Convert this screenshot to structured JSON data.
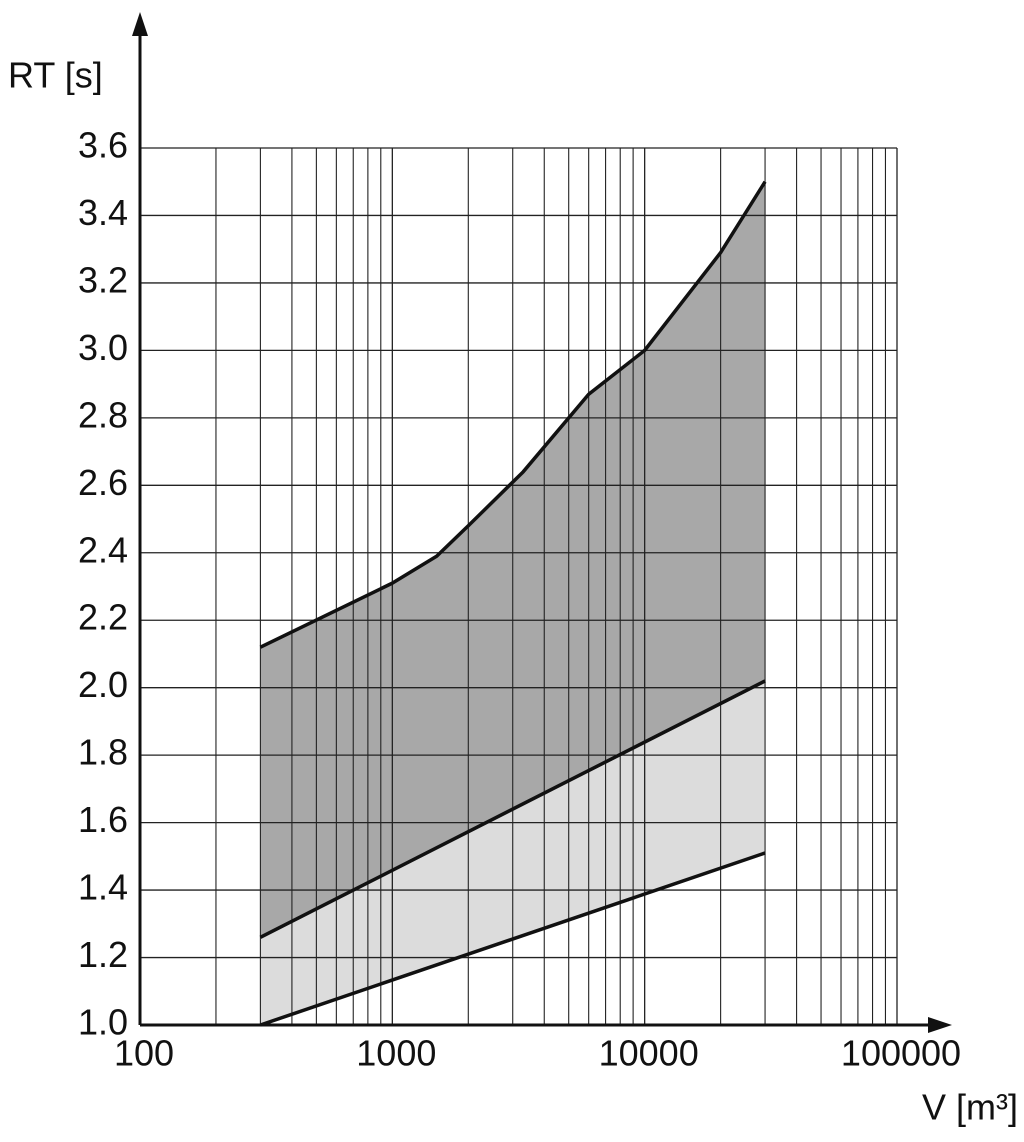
{
  "chart_data": {
    "type": "line",
    "y_label": "RT [s]",
    "x_label": "V [m³]",
    "x_log": true,
    "grid": true,
    "xlim": [
      100,
      100000
    ],
    "xticks": [
      100,
      1000,
      10000,
      100000
    ],
    "xminorticks": [
      200,
      300,
      400,
      500,
      600,
      700,
      800,
      900,
      2000,
      3000,
      4000,
      5000,
      6000,
      7000,
      8000,
      9000,
      20000,
      30000,
      40000,
      50000,
      60000,
      70000,
      80000,
      90000
    ],
    "ylim": [
      1,
      3.6
    ],
    "yticks": [
      {
        "value": 1,
        "label": "1.0"
      },
      1.2,
      1.4,
      1.6,
      1.8,
      {
        "value": 2,
        "label": "2.0"
      },
      2.2,
      2.4,
      2.6,
      2.8,
      {
        "value": 3,
        "label": "3.0"
      },
      3.2,
      3.4,
      3.6
    ],
    "series": [
      {
        "color": "#111111",
        "fill": "#a8a8a8",
        "x": [
          300,
          1000,
          1500,
          2000,
          3300,
          6000,
          10000,
          20000,
          30000
        ],
        "values": [
          2.12,
          2.31,
          2.39,
          2.48,
          2.64,
          2.87,
          3.0,
          3.29,
          3.5
        ]
      },
      {
        "color": "#111111",
        "fill": "#dcdcdc",
        "x": [
          300,
          30000
        ],
        "values": [
          1.26,
          2.02
        ]
      },
      {
        "color": "#111111",
        "x": [
          300,
          30000
        ],
        "values": [
          1.0,
          1.51
        ]
      }
    ]
  }
}
